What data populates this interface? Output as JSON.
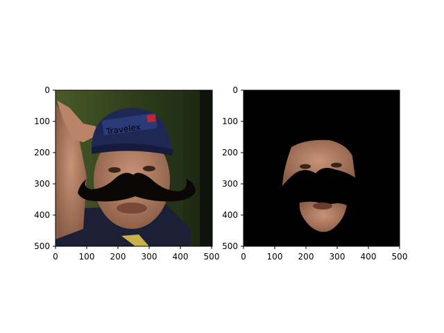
{
  "figure": {
    "panels": [
      {
        "name": "original-with-mustache",
        "description_hidden": false,
        "x_ticks": [
          "0",
          "100",
          "200",
          "300",
          "400",
          "500"
        ],
        "y_ticks": [
          "0",
          "100",
          "200",
          "300",
          "400",
          "500"
        ],
        "image_label": "Travelex"
      },
      {
        "name": "masked-face-region",
        "x_ticks": [
          "0",
          "100",
          "200",
          "300",
          "400",
          "500"
        ],
        "y_ticks": [
          "0",
          "100",
          "200",
          "300",
          "400",
          "500"
        ]
      }
    ],
    "colors": {
      "background": "#ffffff",
      "mask": "#000000",
      "mustache": "#0b0707",
      "cap": "#1c2550",
      "skin": "#a87a60",
      "foliage": "#3b4a1e"
    }
  }
}
